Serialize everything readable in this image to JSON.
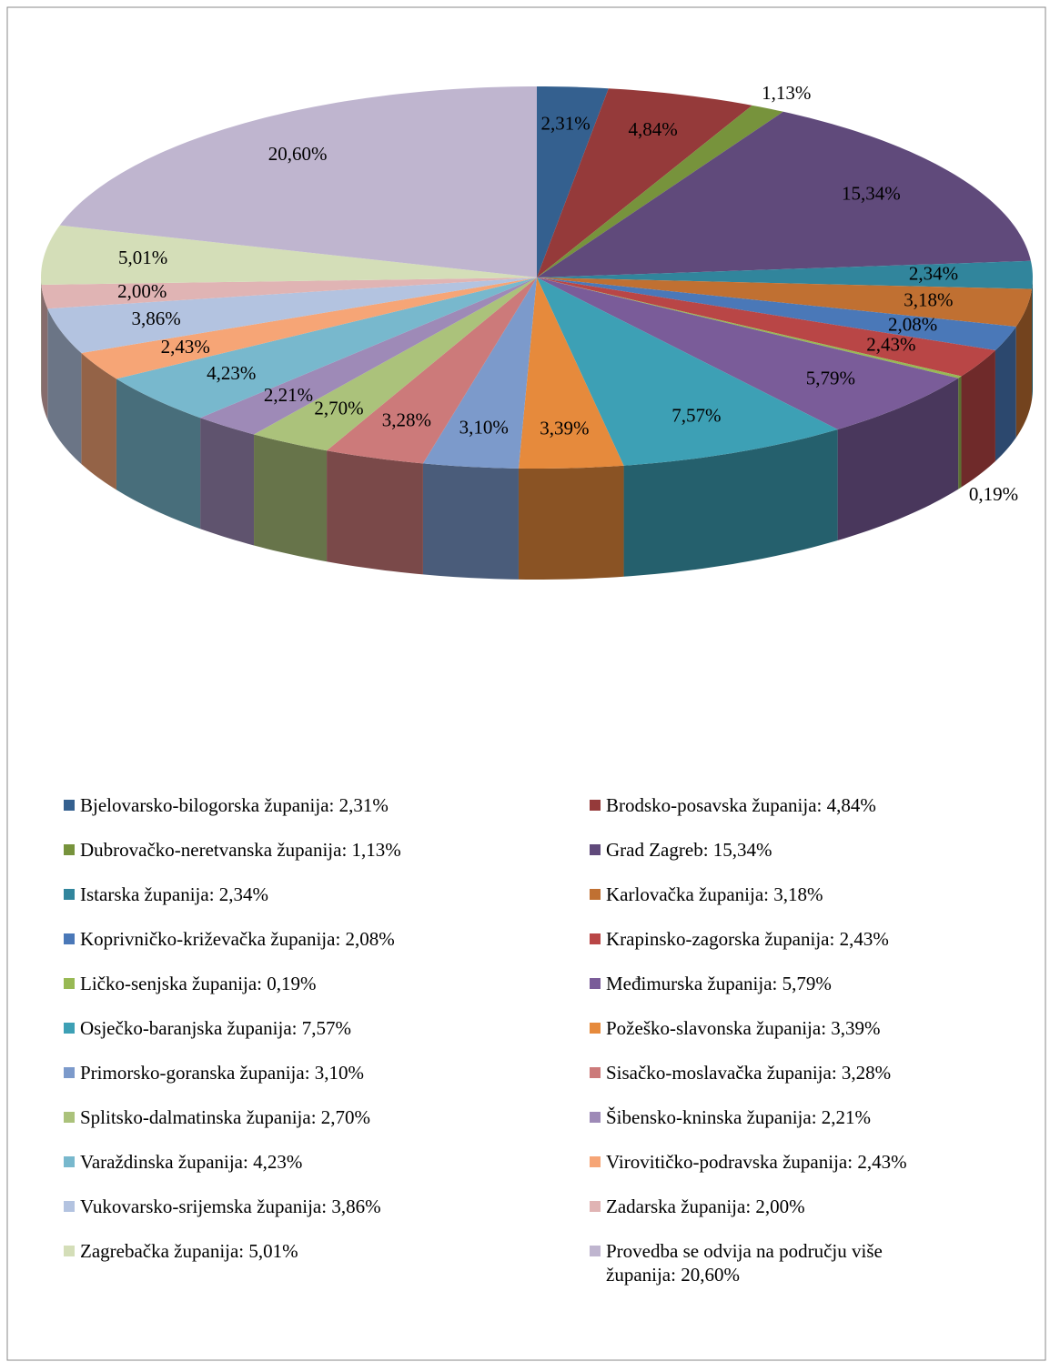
{
  "chart_data": {
    "type": "pie",
    "categories": [
      "Bjelovarsko-bilogorska županija: 2,31%",
      "Brodsko-posavska županija: 4,84%",
      "Dubrovačko-neretvanska županija: 1,13%",
      "Grad Zagreb: 15,34%",
      "Istarska županija: 2,34%",
      "Karlovačka županija: 3,18%",
      "Koprivničko-križevačka županija: 2,08%",
      "Krapinsko-zagorska županija: 2,43%",
      "Ličko-senjska županija: 0,19%",
      "Međimurska županija: 5,79%",
      "Osječko-baranjska županija: 7,57%",
      "Požeško-slavonska županija: 3,39%",
      "Primorsko-goranska županija: 3,10%",
      "Sisačko-moslavačka županija: 3,28%",
      "Splitsko-dalmatinska županija: 2,70%",
      "Šibensko-kninska županija: 2,21%",
      "Varaždinska županija: 4,23%",
      "Virovitičko-podravska županija: 2,43%",
      "Vukovarsko-srijemska županija: 3,86%",
      "Zadarska županija: 2,00%",
      "Zagrebačka županija: 5,01%",
      "Provedba se odvija na području više županija: 20,60%"
    ],
    "values": [
      2.31,
      4.84,
      1.13,
      15.34,
      2.34,
      3.18,
      2.08,
      2.43,
      0.19,
      5.79,
      7.57,
      3.39,
      3.1,
      3.28,
      2.7,
      2.21,
      4.23,
      2.43,
      3.86,
      2.0,
      5.01,
      20.6
    ],
    "value_labels": [
      "2,31%",
      "4,84%",
      "1,13%",
      "15,34%",
      "2,34%",
      "3,18%",
      "2,08%",
      "2,43%",
      "0,19%",
      "5,79%",
      "7,57%",
      "3,39%",
      "3,10%",
      "3,28%",
      "2,70%",
      "2,21%",
      "4,23%",
      "2,43%",
      "3,86%",
      "2,00%",
      "5,01%",
      "20,60%"
    ],
    "colors": [
      "#34608f",
      "#953a3a",
      "#77933c",
      "#604a7b",
      "#31859c",
      "#c07032",
      "#4a78b8",
      "#b94646",
      "#98b954",
      "#7a5c99",
      "#3da0b5",
      "#e68a3c",
      "#7c9acb",
      "#cc7a7a",
      "#abc27b",
      "#9e8ab7",
      "#78b8cd",
      "#f6a576",
      "#b3c3e0",
      "#e0b4b4",
      "#d4deb8",
      "#bfb5cf"
    ],
    "legend": "bottom"
  }
}
